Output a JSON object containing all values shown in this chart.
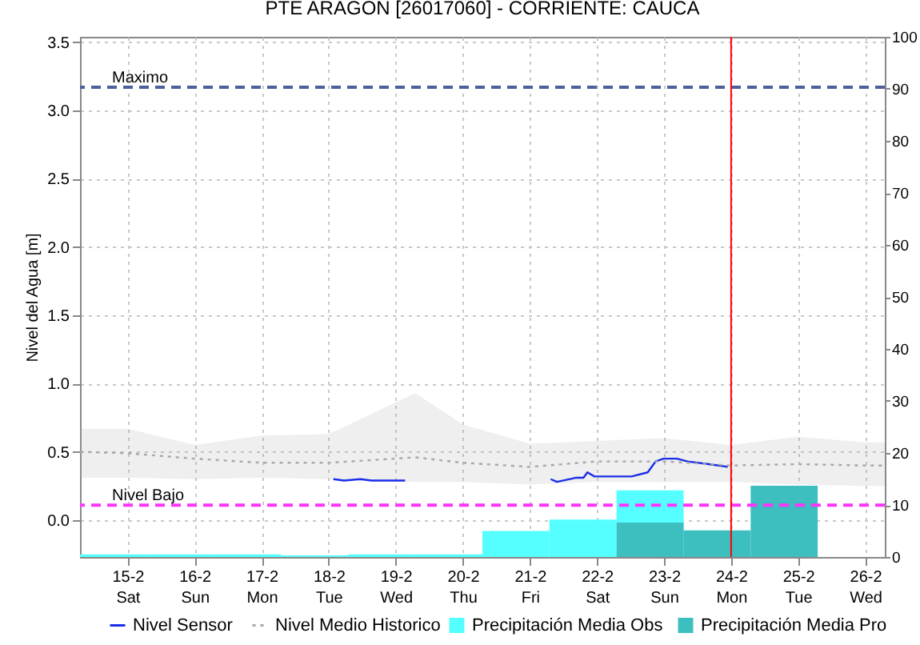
{
  "chart_data": {
    "type": "line",
    "title": "PTE ARAGON   [26017060] - CORRIENTE: CAUCA",
    "ylabel": "Nivel del Agua [m]",
    "xlim": [
      "--02-14T07:00",
      "--02-26T07:00"
    ],
    "xticks": [
      {
        "value": "--02-15",
        "label": "15-2\nSat"
      },
      {
        "value": "--02-16",
        "label": "16-2\nSun"
      },
      {
        "value": "--02-17",
        "label": "17-2\nMon"
      },
      {
        "value": "--02-18",
        "label": "18-2\nTue"
      },
      {
        "value": "--02-19",
        "label": "19-2\nWed"
      },
      {
        "value": "--02-20",
        "label": "20-2\nThu"
      },
      {
        "value": "--02-21",
        "label": "21-2\nFri"
      },
      {
        "value": "--02-22",
        "label": "22-2\nSat"
      },
      {
        "value": "--02-23",
        "label": "23-2\nSun"
      },
      {
        "value": "--02-24",
        "label": "24-2\nMon"
      },
      {
        "value": "--02-25",
        "label": "25-2\nTue"
      },
      {
        "value": "--02-26",
        "label": "26-2\nWed"
      }
    ],
    "ylim": [
      -0.27,
      3.54
    ],
    "yticks": [
      {
        "value": 0,
        "label": "0.0"
      },
      {
        "value": 0.5,
        "label": "0.5"
      },
      {
        "value": 1,
        "label": "1.0"
      },
      {
        "value": 1.5,
        "label": "1.5"
      },
      {
        "value": 2,
        "label": "2.0"
      },
      {
        "value": 2.5,
        "label": "2.5"
      },
      {
        "value": 3,
        "label": "3.0"
      },
      {
        "value": 3.5,
        "label": "3.5"
      }
    ],
    "y2lim": [
      0,
      100
    ],
    "y2ticks": [
      0,
      10,
      20,
      30,
      40,
      50,
      60,
      70,
      80,
      90,
      100
    ],
    "grid": true,
    "legend": "bottom",
    "series": [
      {
        "name": "Nivel Sensor",
        "line_style": "solid",
        "color": "#1a2ee8",
        "x": [
          "--02-18T01:40",
          "--02-18T05:30",
          "--02-18T11:20",
          "--02-18T15:20",
          "--02-19T03:20",
          "--02-20T00:00",
          "--02-21T07:26",
          "--02-21T09:40",
          "--02-21T16:20",
          "--02-21T19:10",
          "--02-21T20:35",
          "--02-21T23:05",
          "--02-22T12:25",
          "--02-22T18:10",
          "--02-22T21:00",
          "--02-22T23:50",
          "--02-23T04:35",
          "--02-23T08:25",
          "--02-23T16:00",
          "--02-23T22:50"
        ],
        "values": [
          0.3,
          0.29,
          0.3,
          0.29,
          0.29,
          null,
          0.3,
          0.28,
          0.31,
          0.31,
          0.35,
          0.32,
          0.32,
          0.35,
          0.43,
          0.45,
          0.45,
          0.43,
          0.41,
          0.39
        ]
      },
      {
        "name": "Nivel Medio Historico",
        "line_style": "dotted",
        "color": "#a8a8a8",
        "x": [
          "--02-14T07:00",
          "--02-15",
          "--02-16",
          "--02-17",
          "--02-18",
          "--02-19T07:00",
          "--02-20",
          "--02-21",
          "--02-22",
          "--02-23",
          "--02-24",
          "--02-25",
          "--02-26",
          "--02-26T07:00"
        ],
        "values": [
          0.5,
          0.49,
          0.45,
          0.42,
          0.42,
          0.46,
          0.42,
          0.39,
          0.43,
          0.43,
          0.4,
          0.41,
          0.4,
          0.4
        ],
        "upper": [
          0.67,
          0.67,
          0.55,
          0.62,
          0.63,
          0.93,
          0.7,
          0.56,
          0.58,
          0.6,
          0.55,
          0.61,
          0.57,
          0.57
        ],
        "lower": [
          0.31,
          0.31,
          0.3,
          0.31,
          0.3,
          0.28,
          0.28,
          0.26,
          0.28,
          0.28,
          0.28,
          0.26,
          0.25,
          0.25
        ]
      },
      {
        "name": "Precipitación Media Obs",
        "type": "bar",
        "axis": "y2",
        "color": "#55ffff",
        "x": [
          "--02-14T19:00",
          "--02-15T19:00",
          "--02-16T19:00",
          "--02-17T19:00",
          "--02-18T19:00",
          "--02-19T19:00",
          "--02-20T19:00",
          "--02-21T19:00",
          "--02-22T19:00"
        ],
        "values": [
          0.5,
          0.5,
          0.5,
          0.3,
          0.5,
          0.5,
          5.0,
          7.2,
          12.8
        ]
      },
      {
        "name": "Precipitación Media Pro",
        "type": "bar",
        "axis": "y2",
        "color": "#3dbfbf",
        "x": [
          "--02-22T19:00",
          "--02-23T19:00",
          "--02-24T19:00"
        ],
        "values": [
          6.6,
          5.1,
          13.7
        ]
      }
    ],
    "ref_lines": [
      {
        "axis": "y",
        "value": 3.17,
        "label": "Maximo",
        "color": "#4f5f9a",
        "line_style": "dashed"
      },
      {
        "axis": "y",
        "value": 0.11,
        "label": "Nivel Bajo",
        "color": "#ff33ff",
        "line_style": "dashed"
      },
      {
        "axis": "x",
        "value": "--02-24T00:00",
        "color": "#ff0000",
        "line_style": "solid"
      }
    ]
  }
}
